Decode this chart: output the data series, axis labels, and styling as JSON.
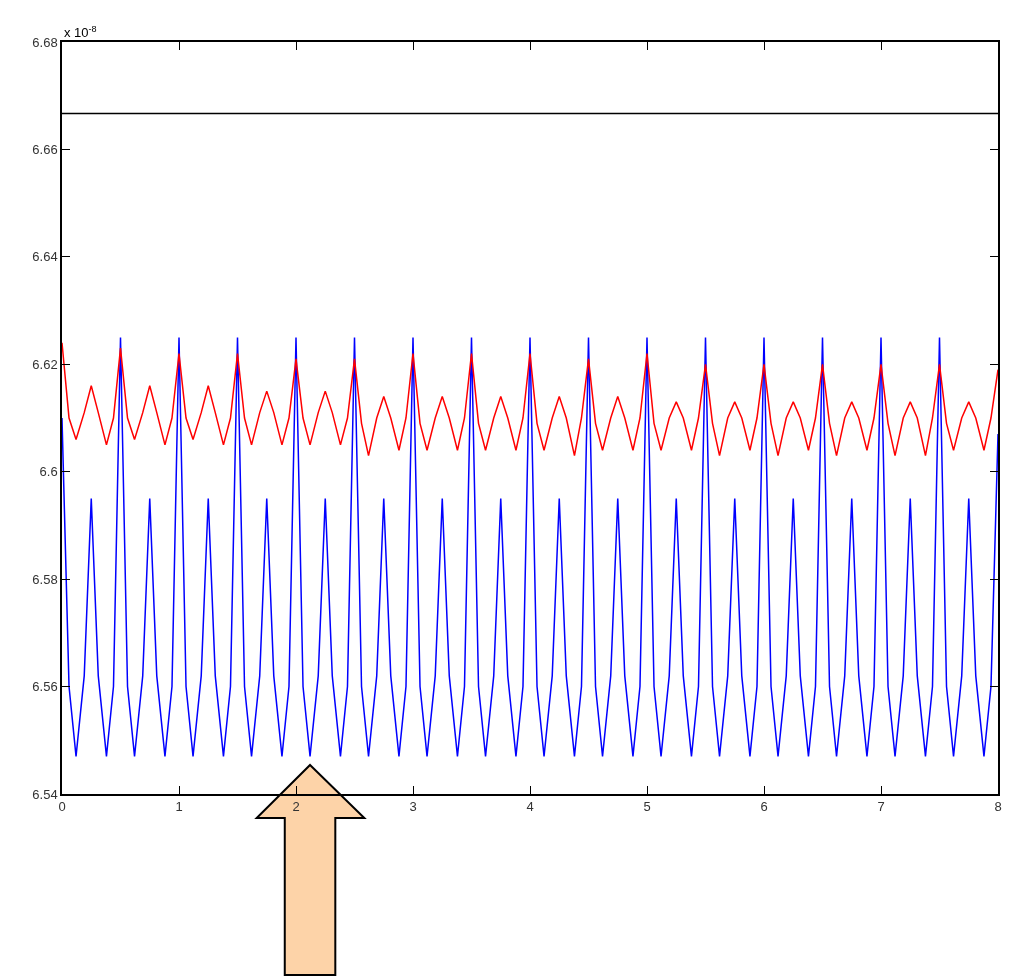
{
  "chart_data": {
    "type": "line",
    "x": [
      0,
      0.06,
      0.12,
      0.19,
      0.25,
      0.31,
      0.38,
      0.44,
      0.5,
      0.56,
      0.62,
      0.69,
      0.75,
      0.81,
      0.88,
      0.94,
      1,
      1.06,
      1.12,
      1.19,
      1.25,
      1.31,
      1.38,
      1.44,
      1.5,
      1.56,
      1.62,
      1.69,
      1.75,
      1.81,
      1.88,
      1.94,
      2,
      2.06,
      2.12,
      2.19,
      2.25,
      2.31,
      2.38,
      2.44,
      2.5,
      2.56,
      2.62,
      2.69,
      2.75,
      2.81,
      2.88,
      2.94,
      3,
      3.06,
      3.12,
      3.19,
      3.25,
      3.31,
      3.38,
      3.44,
      3.5,
      3.56,
      3.62,
      3.69,
      3.75,
      3.81,
      3.88,
      3.94,
      4,
      4.06,
      4.12,
      4.19,
      4.25,
      4.31,
      4.38,
      4.44,
      4.5,
      4.56,
      4.62,
      4.69,
      4.75,
      4.81,
      4.88,
      4.94,
      5,
      5.06,
      5.12,
      5.19,
      5.25,
      5.31,
      5.38,
      5.44,
      5.5,
      5.56,
      5.62,
      5.69,
      5.75,
      5.81,
      5.88,
      5.94,
      6,
      6.06,
      6.12,
      6.19,
      6.25,
      6.31,
      6.38,
      6.44,
      6.5,
      6.56,
      6.62,
      6.69,
      6.75,
      6.81,
      6.88,
      6.94,
      7,
      7.06,
      7.12,
      7.19,
      7.25,
      7.31,
      7.38,
      7.44,
      7.5,
      7.56,
      7.62,
      7.69,
      7.75,
      7.81,
      7.88,
      7.94,
      8
    ],
    "series": [
      {
        "color": "#0000ff",
        "values": [
          6.61,
          6.56,
          6.547,
          6.562,
          6.595,
          6.562,
          6.547,
          6.56,
          6.625,
          6.56,
          6.547,
          6.562,
          6.595,
          6.562,
          6.547,
          6.56,
          6.625,
          6.56,
          6.547,
          6.562,
          6.595,
          6.562,
          6.547,
          6.56,
          6.625,
          6.56,
          6.547,
          6.562,
          6.595,
          6.562,
          6.547,
          6.56,
          6.625,
          6.56,
          6.547,
          6.562,
          6.595,
          6.562,
          6.547,
          6.56,
          6.625,
          6.56,
          6.547,
          6.562,
          6.595,
          6.562,
          6.547,
          6.56,
          6.625,
          6.56,
          6.547,
          6.562,
          6.595,
          6.562,
          6.547,
          6.56,
          6.625,
          6.56,
          6.547,
          6.562,
          6.595,
          6.562,
          6.547,
          6.56,
          6.625,
          6.56,
          6.547,
          6.562,
          6.595,
          6.562,
          6.547,
          6.56,
          6.625,
          6.56,
          6.547,
          6.562,
          6.595,
          6.562,
          6.547,
          6.56,
          6.625,
          6.56,
          6.547,
          6.562,
          6.595,
          6.562,
          6.547,
          6.56,
          6.625,
          6.56,
          6.547,
          6.562,
          6.595,
          6.562,
          6.547,
          6.56,
          6.625,
          6.56,
          6.547,
          6.562,
          6.595,
          6.562,
          6.547,
          6.56,
          6.625,
          6.56,
          6.547,
          6.562,
          6.595,
          6.562,
          6.547,
          6.56,
          6.625,
          6.56,
          6.547,
          6.562,
          6.595,
          6.562,
          6.547,
          6.56,
          6.625,
          6.56,
          6.547,
          6.562,
          6.595,
          6.562,
          6.547,
          6.56,
          6.607
        ]
      },
      {
        "color": "#ff0000",
        "values": [
          6.624,
          6.61,
          6.606,
          6.611,
          6.616,
          6.611,
          6.605,
          6.61,
          6.623,
          6.61,
          6.606,
          6.611,
          6.616,
          6.611,
          6.605,
          6.61,
          6.622,
          6.61,
          6.606,
          6.611,
          6.616,
          6.611,
          6.605,
          6.61,
          6.622,
          6.61,
          6.605,
          6.611,
          6.615,
          6.611,
          6.605,
          6.61,
          6.621,
          6.61,
          6.605,
          6.611,
          6.615,
          6.611,
          6.605,
          6.61,
          6.621,
          6.609,
          6.603,
          6.61,
          6.614,
          6.61,
          6.604,
          6.61,
          6.622,
          6.609,
          6.604,
          6.61,
          6.614,
          6.61,
          6.604,
          6.61,
          6.622,
          6.609,
          6.604,
          6.61,
          6.614,
          6.61,
          6.604,
          6.61,
          6.622,
          6.609,
          6.604,
          6.61,
          6.614,
          6.61,
          6.603,
          6.61,
          6.621,
          6.609,
          6.604,
          6.61,
          6.614,
          6.61,
          6.604,
          6.61,
          6.622,
          6.609,
          6.604,
          6.61,
          6.613,
          6.61,
          6.604,
          6.61,
          6.62,
          6.609,
          6.603,
          6.61,
          6.613,
          6.61,
          6.604,
          6.61,
          6.62,
          6.609,
          6.603,
          6.61,
          6.613,
          6.61,
          6.604,
          6.61,
          6.62,
          6.609,
          6.603,
          6.61,
          6.613,
          6.61,
          6.604,
          6.61,
          6.62,
          6.609,
          6.603,
          6.61,
          6.613,
          6.61,
          6.603,
          6.61,
          6.62,
          6.609,
          6.604,
          6.61,
          6.613,
          6.61,
          6.604,
          6.61,
          6.619
        ]
      }
    ],
    "xlim": [
      0,
      8
    ],
    "xticks": [
      0,
      1,
      2,
      3,
      4,
      5,
      6,
      7,
      8
    ],
    "ylim": [
      6.54,
      6.68
    ],
    "yticks": [
      6.54,
      6.56,
      6.58,
      {
        "value": 6.6,
        "label": "6.6"
      },
      6.62,
      6.64,
      6.66,
      6.68
    ],
    "ref_lines": [
      {
        "axis": "y",
        "value": 6.6667,
        "color": "#000000"
      }
    ],
    "annotations": [
      "x 10$^{-8}$"
    ],
    "grid": false,
    "legend": false,
    "marker": "none",
    "line_style": "solid"
  }
}
